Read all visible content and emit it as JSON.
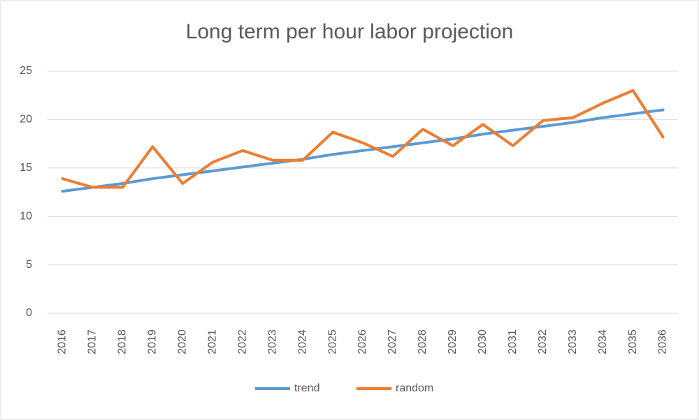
{
  "chart_data": {
    "type": "line",
    "title": "Long term per hour labor projection",
    "categories": [
      "2016",
      "2017",
      "2018",
      "2019",
      "2020",
      "2021",
      "2022",
      "2023",
      "2024",
      "2025",
      "2026",
      "2027",
      "2028",
      "2029",
      "2030",
      "2031",
      "2032",
      "2033",
      "2034",
      "2035",
      "2036"
    ],
    "series": [
      {
        "name": "trend",
        "color": "#5b9bd5",
        "values": [
          12.6,
          13.0,
          13.4,
          13.9,
          14.3,
          14.7,
          15.1,
          15.5,
          15.9,
          16.4,
          16.8,
          17.2,
          17.6,
          18.0,
          18.5,
          18.9,
          19.3,
          19.7,
          20.2,
          20.6,
          21.0
        ]
      },
      {
        "name": "random",
        "color": "#ed7d31",
        "values": [
          13.9,
          13.0,
          13.0,
          17.2,
          13.4,
          15.6,
          16.8,
          15.8,
          15.8,
          18.7,
          17.6,
          16.2,
          19.0,
          17.3,
          19.5,
          17.3,
          19.9,
          20.2,
          21.7,
          23.0,
          18.2
        ]
      }
    ],
    "ylim": [
      0,
      25
    ],
    "yticks": [
      0,
      5,
      10,
      15,
      20,
      25
    ],
    "grid": true,
    "legend": "bottom"
  }
}
